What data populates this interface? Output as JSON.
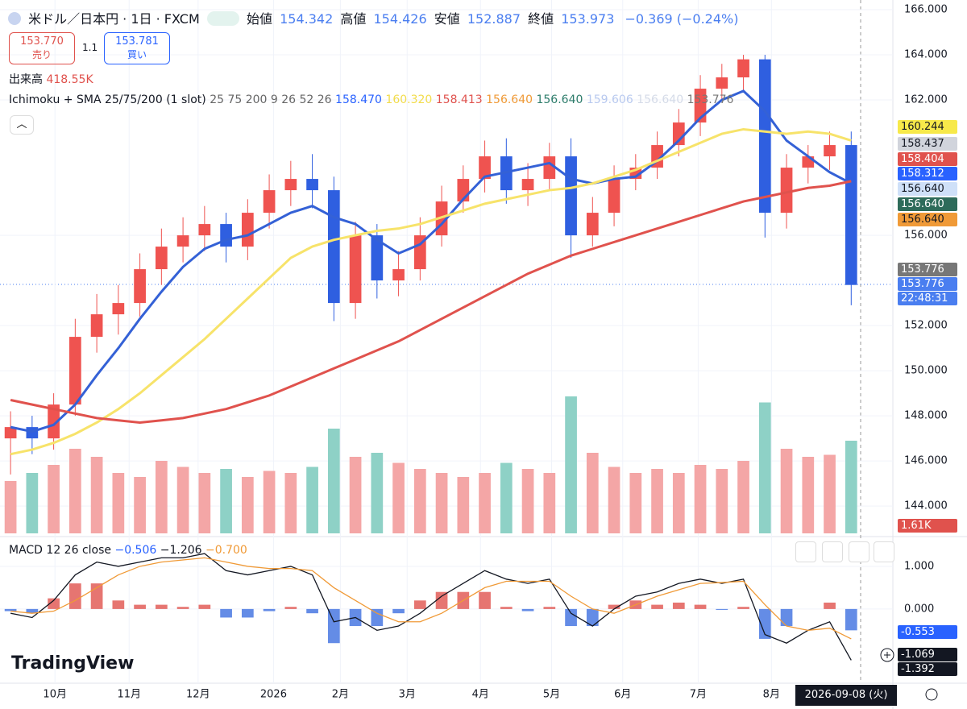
{
  "header": {
    "symbol": "米ドル／日本円 · 1日 · FXCM",
    "ohlc": [
      {
        "label": "始値",
        "value": "154.342"
      },
      {
        "label": "高値",
        "value": "154.426"
      },
      {
        "label": "安値",
        "value": "152.887"
      },
      {
        "label": "終値",
        "value": "153.973"
      }
    ],
    "change": "−0.369 (−0.24%)",
    "sell": {
      "price": "153.770",
      "label": "売り"
    },
    "spread": "1.1",
    "buy": {
      "price": "153.781",
      "label": "買い"
    },
    "volume_label": "出来高",
    "volume_value": "418.55K",
    "indicator": "Ichimoku + SMA 25/75/200 (1 slot)",
    "indicator_params": "25 75 200 9 26 52 26",
    "indicator_values": [
      {
        "text": "158.470",
        "color": "#2962ff"
      },
      {
        "text": "160.320",
        "color": "#f2dc4b"
      },
      {
        "text": "158.413",
        "color": "#e0524d"
      },
      {
        "text": "156.640",
        "color": "#f09a37"
      },
      {
        "text": "156.640",
        "color": "#2e7d6b"
      },
      {
        "text": "159.606",
        "color": "#b8c9ef"
      },
      {
        "text": "156.640",
        "color": "#d5dbe8"
      },
      {
        "text": "153.776",
        "color": "#777"
      }
    ]
  },
  "price_tags": [
    {
      "text": "160.244",
      "bg": "#f7e94a",
      "fg": "#131722"
    },
    {
      "text": "158.437",
      "bg": "#d1d4dc",
      "fg": "#131722"
    },
    {
      "text": "158.404",
      "bg": "#e0524d",
      "fg": "#fff"
    },
    {
      "text": "158.312",
      "bg": "#2962ff",
      "fg": "#fff"
    },
    {
      "text": "156.640",
      "bg": "#cfe0f8",
      "fg": "#131722"
    },
    {
      "text": "156.640",
      "bg": "#2e6b5a",
      "fg": "#fff"
    },
    {
      "text": "156.640",
      "bg": "#f09a37",
      "fg": "#131722"
    },
    {
      "text": "153.776",
      "bg": "#777",
      "fg": "#fff"
    },
    {
      "text": "153.776",
      "bg": "#4a7ef0",
      "fg": "#fff"
    },
    {
      "text": "22:48:31",
      "bg": "#4a7ef0",
      "fg": "#fff"
    },
    {
      "text": "1.61K",
      "bg": "#e0524d",
      "fg": "#fff"
    }
  ],
  "macd_legend": {
    "title": "MACD 12 26 close",
    "values": [
      {
        "text": "−0.506",
        "color": "#2962ff"
      },
      {
        "text": "−1.206",
        "color": "#131722"
      },
      {
        "text": "−0.700",
        "color": "#f09a37"
      }
    ]
  },
  "macd_tags": [
    {
      "text": "-0.553",
      "bg": "#2962ff",
      "fg": "#fff"
    },
    {
      "text": "-1.069",
      "bg": "#131722",
      "fg": "#fff"
    },
    {
      "text": "-1.392",
      "bg": "#131722",
      "fg": "#fff"
    }
  ],
  "date_tag": "2026-09-08 (火)",
  "logo": "TradingView",
  "chart_data": {
    "type": "candlestick",
    "xlim": [
      -0.49,
      40.26
    ],
    "xticks": [
      {
        "value": 2.06,
        "label": "10月"
      },
      {
        "value": 5.5,
        "label": "11月"
      },
      {
        "value": 8.7,
        "label": "12月"
      },
      {
        "value": 12.2,
        "label": "2026"
      },
      {
        "value": 15.3,
        "label": "2月"
      },
      {
        "value": 18.4,
        "label": "3月"
      },
      {
        "value": 21.8,
        "label": "4月"
      },
      {
        "value": 25.1,
        "label": "5月"
      },
      {
        "value": 28.4,
        "label": "6月"
      },
      {
        "value": 31.9,
        "label": "7月"
      },
      {
        "value": 35.3,
        "label": "8月"
      }
    ],
    "ylim": [
      142.79,
      166.43
    ],
    "yticks": [
      {
        "value": 166,
        "label": "166.000"
      },
      {
        "value": 164,
        "label": "164.000"
      },
      {
        "value": 162,
        "label": "162.000"
      },
      {
        "value": 156,
        "label": "156.000"
      },
      {
        "value": 152,
        "label": "152.000"
      },
      {
        "value": 150,
        "label": "150.000"
      },
      {
        "value": 148,
        "label": "148.000"
      },
      {
        "value": 146,
        "label": "146.000"
      },
      {
        "value": 144,
        "label": "144.000"
      }
    ],
    "up_color": "#ef5350",
    "down_color": "#2f5fe0",
    "open": [
      147.0,
      147.5,
      147.0,
      148.5,
      151.5,
      152.5,
      153.0,
      154.5,
      155.5,
      156.0,
      156.5,
      155.5,
      157.0,
      158.0,
      158.5,
      158.0,
      153.0,
      156.0,
      154.0,
      154.5,
      156.0,
      157.5,
      158.5,
      159.5,
      158.0,
      158.5,
      159.5,
      156.0,
      157.0,
      158.5,
      159.0,
      160.0,
      161.0,
      162.5,
      163.0,
      163.8,
      157.0,
      159.0,
      159.5,
      160.0
    ],
    "high": [
      148.2,
      148.0,
      149.0,
      152.3,
      153.4,
      153.8,
      155.2,
      156.3,
      156.8,
      157.3,
      157.0,
      157.6,
      158.7,
      159.3,
      159.6,
      158.6,
      156.6,
      156.5,
      155.3,
      156.8,
      158.2,
      159.1,
      160.2,
      160.3,
      159.2,
      160.1,
      160.3,
      157.7,
      159.1,
      159.6,
      160.6,
      161.6,
      163.1,
      163.6,
      164.0,
      164.0,
      159.6,
      160.0,
      160.6,
      160.6
    ],
    "low": [
      145.4,
      146.3,
      146.5,
      148.0,
      150.8,
      151.6,
      152.4,
      153.8,
      154.8,
      155.3,
      154.8,
      154.9,
      156.3,
      157.3,
      157.2,
      152.2,
      152.3,
      153.2,
      153.3,
      154.0,
      155.5,
      157.0,
      157.9,
      157.4,
      157.3,
      158.0,
      155.0,
      155.5,
      156.4,
      158.0,
      158.5,
      159.5,
      160.4,
      162.0,
      162.4,
      155.9,
      156.3,
      158.3,
      158.9,
      152.9
    ],
    "close": [
      147.5,
      147.0,
      148.5,
      151.5,
      152.5,
      153.0,
      154.5,
      155.5,
      156.0,
      156.5,
      155.5,
      157.0,
      158.0,
      158.5,
      158.0,
      153.0,
      156.0,
      154.0,
      154.5,
      156.0,
      157.5,
      158.5,
      159.5,
      158.0,
      158.5,
      159.5,
      156.0,
      157.0,
      158.5,
      159.0,
      160.0,
      161.0,
      162.5,
      163.0,
      163.8,
      157.0,
      159.0,
      159.5,
      160.0,
      153.8
    ],
    "lines": [
      {
        "color": "#3461d6",
        "values": [
          147.5,
          147.3,
          147.6,
          148.5,
          149.8,
          151,
          152.3,
          153.5,
          154.6,
          155.4,
          155.8,
          156,
          156.5,
          157,
          157.3,
          156.8,
          156.5,
          155.8,
          155.2,
          155.6,
          156.5,
          157.6,
          158.6,
          158.8,
          159,
          159.2,
          158.5,
          158.3,
          158.5,
          158.6,
          159.3,
          160.2,
          161.2,
          162,
          162.4,
          161.5,
          160.2,
          159.5,
          158.8,
          158.3
        ]
      },
      {
        "color": "#f7e36a",
        "values": [
          146.3,
          146.5,
          146.8,
          147.2,
          147.7,
          148.3,
          149,
          149.8,
          150.6,
          151.4,
          152.3,
          153.2,
          154.1,
          155,
          155.5,
          155.8,
          156,
          156.2,
          156.3,
          156.5,
          156.8,
          157.1,
          157.4,
          157.6,
          157.8,
          158,
          158.1,
          158.3,
          158.6,
          158.9,
          159.3,
          159.7,
          160.1,
          160.5,
          160.7,
          160.6,
          160.5,
          160.6,
          160.5,
          160.2
        ]
      },
      {
        "color": "#e0524d",
        "values": [
          148.7,
          148.5,
          148.3,
          148.1,
          147.9,
          147.8,
          147.7,
          147.8,
          147.9,
          148.1,
          148.3,
          148.6,
          148.9,
          149.3,
          149.7,
          150.1,
          150.5,
          150.9,
          151.3,
          151.8,
          152.3,
          152.8,
          153.3,
          153.8,
          154.3,
          154.7,
          155.1,
          155.4,
          155.7,
          156,
          156.3,
          156.6,
          156.9,
          157.2,
          157.5,
          157.7,
          157.9,
          158.1,
          158.2,
          158.4
        ]
      }
    ],
    "volume": {
      "ylim": [
        0,
        2648
      ],
      "up_color": "#f4a6a6",
      "down_color": "#8ed1c6",
      "values": [
        260,
        300,
        340,
        420,
        380,
        300,
        280,
        360,
        330,
        300,
        320,
        280,
        310,
        300,
        330,
        520,
        380,
        400,
        350,
        320,
        300,
        280,
        300,
        350,
        320,
        300,
        680,
        400,
        330,
        300,
        320,
        300,
        340,
        320,
        360,
        650,
        420,
        380,
        390,
        460
      ]
    },
    "macd": {
      "ylim": [
        -1.74,
        1.66
      ],
      "yticks": [
        {
          "value": 1,
          "label": "1.000"
        },
        {
          "value": 0,
          "label": "0.000"
        }
      ],
      "macd_color": "#131722",
      "signal_color": "#f09a37",
      "pos_color": "#e0524d",
      "neg_color": "#3d6fe0",
      "macd": [
        -0.1,
        -0.2,
        0.2,
        0.8,
        1.1,
        1.0,
        1.1,
        1.2,
        1.2,
        1.3,
        0.9,
        0.8,
        0.9,
        1.0,
        0.8,
        -0.3,
        -0.2,
        -0.5,
        -0.4,
        -0.1,
        0.3,
        0.6,
        0.9,
        0.7,
        0.6,
        0.7,
        -0.1,
        -0.4,
        0.0,
        0.3,
        0.4,
        0.6,
        0.7,
        0.6,
        0.7,
        -0.6,
        -0.8,
        -0.5,
        -0.3,
        -1.2
      ],
      "signal": [
        -0.05,
        -0.1,
        -0.05,
        0.2,
        0.5,
        0.8,
        1.0,
        1.1,
        1.15,
        1.2,
        1.1,
        1.0,
        0.95,
        0.95,
        0.9,
        0.5,
        0.2,
        -0.1,
        -0.3,
        -0.3,
        -0.1,
        0.2,
        0.5,
        0.65,
        0.65,
        0.65,
        0.3,
        0.0,
        -0.1,
        0.1,
        0.3,
        0.45,
        0.6,
        0.62,
        0.65,
        0.1,
        -0.4,
        -0.5,
        -0.45,
        -0.7
      ],
      "histogram": [
        -0.05,
        -0.1,
        0.25,
        0.6,
        0.6,
        0.2,
        0.1,
        0.1,
        0.05,
        0.1,
        -0.2,
        -0.2,
        -0.05,
        0.05,
        -0.1,
        -0.8,
        -0.4,
        -0.4,
        -0.1,
        0.2,
        0.4,
        0.4,
        0.4,
        0.05,
        -0.05,
        0.05,
        -0.4,
        -0.4,
        0.1,
        0.2,
        0.1,
        0.15,
        0.1,
        -0.02,
        0.05,
        -0.7,
        -0.4,
        0,
        0.15,
        -0.5
      ]
    }
  }
}
